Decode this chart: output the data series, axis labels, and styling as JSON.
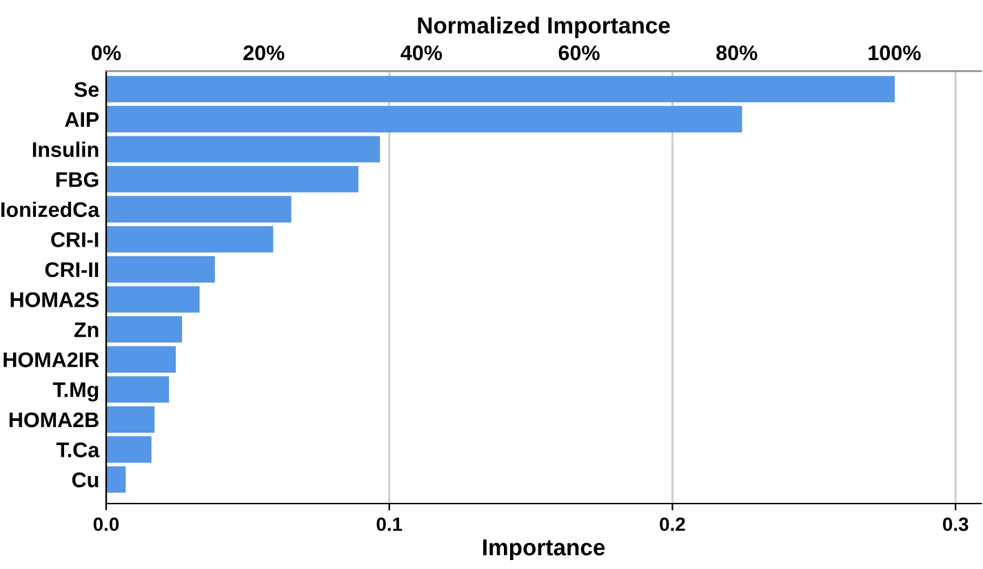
{
  "chart_data": {
    "type": "bar",
    "orientation": "horizontal",
    "xlabel": "Importance",
    "x2label": "Normalized Importance",
    "categories": [
      "Se",
      "AIP",
      "Insulin",
      "FBG",
      "IonizedCa",
      "CRI-I",
      "CRI-II",
      "HOMA2S",
      "Zn",
      "HOMA2IR",
      "T.Mg",
      "HOMA2B",
      "T.Ca",
      "Cu"
    ],
    "values": [
      0.2785,
      0.2246,
      0.0967,
      0.0891,
      0.0654,
      0.059,
      0.0384,
      0.033,
      0.0268,
      0.0246,
      0.0222,
      0.0171,
      0.016,
      0.0069
    ],
    "color": "#5596e6",
    "xlim": [
      0,
      0.309
    ],
    "xticks": [
      {
        "value": 0,
        "label": "0.0"
      },
      0.1,
      0.2,
      0.3
    ],
    "x2lim": [
      0,
      111
    ],
    "x2ticks": [
      {
        "value": 0,
        "label": "0%"
      },
      {
        "value": 20,
        "label": "20%"
      },
      {
        "value": 40,
        "label": "40%"
      },
      {
        "value": 60,
        "label": "60%"
      },
      {
        "value": 80,
        "label": "80%"
      },
      {
        "value": 100,
        "label": "100%"
      }
    ],
    "grid": "x"
  }
}
